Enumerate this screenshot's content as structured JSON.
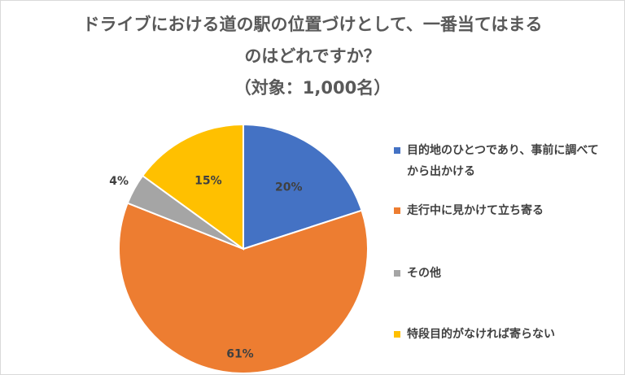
{
  "chart_data": {
    "type": "pie",
    "title_lines": [
      "ドライブにおける道の駅の位置づけとして、一番当てはまる",
      "のはどれですか？",
      "（対象：1,000名）"
    ],
    "slices": [
      {
        "label": "目的地のひとつであり、事前に調べてから出かける",
        "value": 20,
        "display": "20%",
        "color": "#4472C4"
      },
      {
        "label": "走行中に見かけて立ち寄る",
        "value": 61,
        "display": "61%",
        "color": "#ED7D31"
      },
      {
        "label": "その他",
        "value": 4,
        "display": "4%",
        "color": "#A5A5A5"
      },
      {
        "label": "特段目的がなければ寄らない",
        "value": 15,
        "display": "15%",
        "color": "#FFC000"
      }
    ],
    "legend_position": "right",
    "start": "top",
    "direction": "clockwise"
  }
}
